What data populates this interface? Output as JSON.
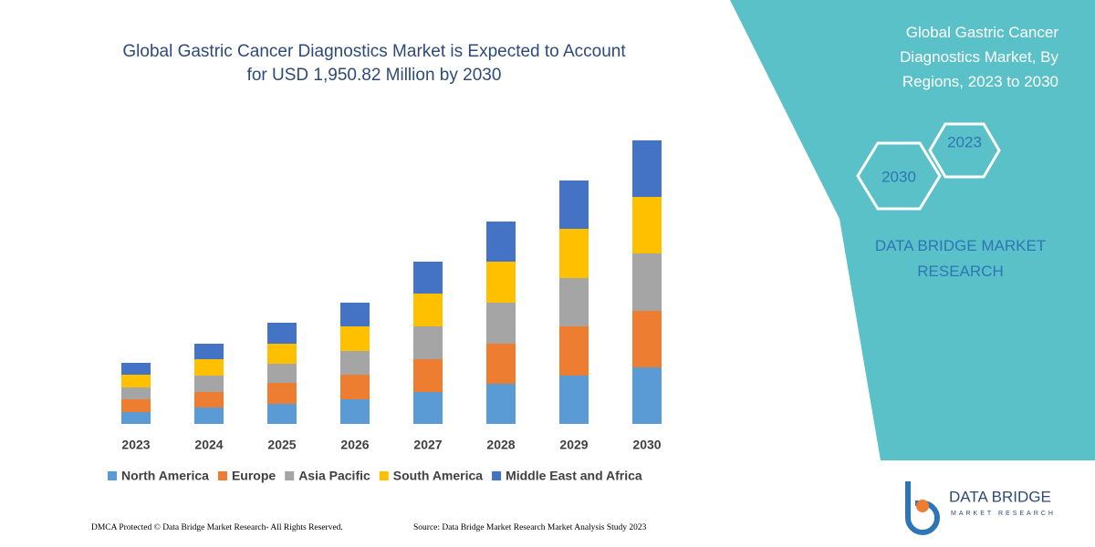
{
  "chart_data": {
    "type": "stacked_bar",
    "title": "Global Gastric Cancer Diagnostics Market is Expected to Account for USD 1,950.82 Million by 2030",
    "categories": [
      "2023",
      "2024",
      "2025",
      "2026",
      "2027",
      "2028",
      "2029",
      "2030"
    ],
    "series": [
      {
        "name": "North America",
        "color": "#5b9bd5",
        "values": [
          13,
          18,
          22,
          27,
          35,
          44,
          53,
          62
        ]
      },
      {
        "name": "Europe",
        "color": "#ed7d31",
        "values": [
          14,
          17,
          23,
          27,
          36,
          44,
          54,
          62
        ]
      },
      {
        "name": "Asia Pacific",
        "color": "#a5a5a5",
        "values": [
          13,
          18,
          21,
          26,
          36,
          45,
          53,
          63
        ]
      },
      {
        "name": "South America",
        "color": "#ffc000",
        "values": [
          14,
          18,
          22,
          27,
          36,
          45,
          54,
          62
        ]
      },
      {
        "name": "Middle East and Africa",
        "color": "#4472c4",
        "values": [
          13,
          17,
          23,
          26,
          35,
          44,
          53,
          62
        ]
      }
    ]
  },
  "panel": {
    "title": "Global Gastric Cancer Diagnostics Market, By Regions, 2023 to 2030",
    "hexagons": [
      "2023",
      "2030"
    ],
    "brand": "DATA BRIDGE MARKET RESEARCH"
  },
  "logo": {
    "name": "DATA BRIDGE",
    "tagline": "MARKET RESEARCH"
  },
  "footer": {
    "left": "DMCA Protected © Data Bridge Market Research- All Rights Reserved.",
    "right": "Source: Data Bridge Market Research Market Analysis Study 2023"
  }
}
